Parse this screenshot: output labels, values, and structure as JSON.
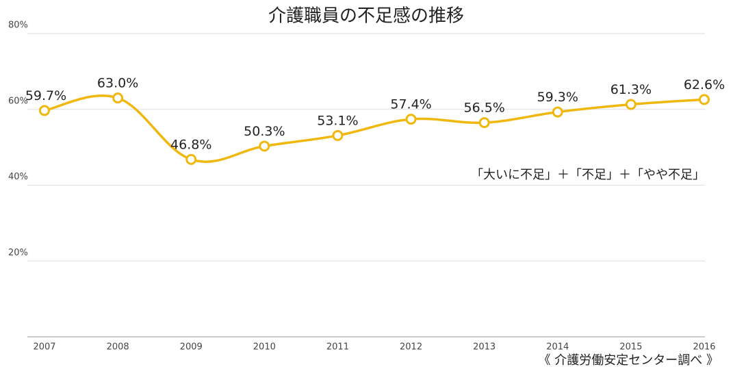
{
  "chart_data": {
    "type": "line",
    "title": "介護職員の不足感の推移",
    "categories": [
      "2007",
      "2008",
      "2009",
      "2010",
      "2011",
      "2012",
      "2013",
      "2014",
      "2015",
      "2016"
    ],
    "series": [
      {
        "name": "「大いに不足」＋「不足」＋「やや不足」",
        "color": "#f0b80e",
        "values": [
          59.7,
          63.0,
          46.8,
          50.3,
          53.1,
          57.4,
          56.5,
          59.3,
          61.3,
          62.6
        ],
        "value_labels": [
          "59.7%",
          "63.0%",
          "46.8%",
          "50.3%",
          "53.1%",
          "57.4%",
          "56.5%",
          "59.3%",
          "61.3%",
          "62.6%"
        ]
      }
    ],
    "ylim": [
      0,
      80
    ],
    "yticks": [
      {
        "value": 20,
        "label": "20%"
      },
      {
        "value": 40,
        "label": "40%"
      },
      {
        "value": 60,
        "label": "60%"
      },
      {
        "value": 80,
        "label": "80%"
      }
    ],
    "grid": true,
    "source": "《 介護労働安定センター調べ 》"
  }
}
